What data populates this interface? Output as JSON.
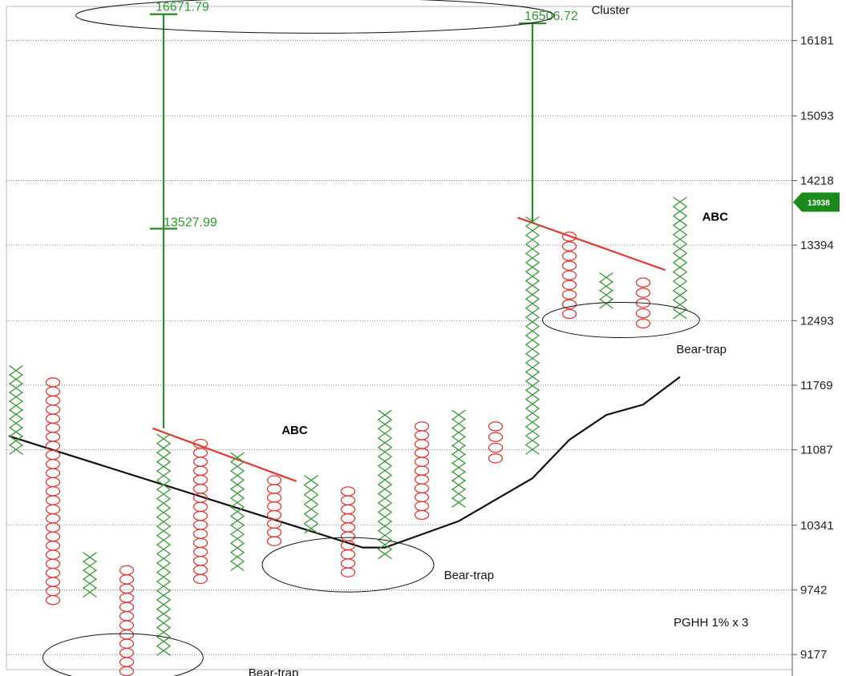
{
  "chart_data": {
    "type": "point-and-figure",
    "symbol_label": "PGHH 1% x 3",
    "y_ticks": [
      16181,
      15093,
      14218,
      13394,
      12493,
      11769,
      11087,
      10341,
      9742,
      9177
    ],
    "ylim": [
      9050,
      16700
    ],
    "scale": "log",
    "grid": "horizontal dotted",
    "current_price": {
      "label": "13938",
      "value": 13938,
      "color": "#1a8a1a"
    },
    "colors": {
      "x": "#3a9a3a",
      "o": "#e53935",
      "trend": "#111111",
      "target": "#2a8a2a",
      "abc": "#e53935"
    },
    "columns": [
      {
        "type": "X",
        "top": 11930,
        "bottom": 11090
      },
      {
        "type": "O",
        "top": 11800,
        "bottom": 9650
      },
      {
        "type": "X",
        "top": 10040,
        "bottom": 9720
      },
      {
        "type": "O",
        "top": 9920,
        "bottom": 8960
      },
      {
        "type": "X",
        "top": 11200,
        "bottom": 9210
      },
      {
        "type": "O",
        "top": 11150,
        "bottom": 9840
      },
      {
        "type": "X",
        "top": 11010,
        "bottom": 9960
      },
      {
        "type": "O",
        "top": 10780,
        "bottom": 10190
      },
      {
        "type": "X",
        "top": 10780,
        "bottom": 10310
      },
      {
        "type": "O",
        "top": 10670,
        "bottom": 9900
      },
      {
        "type": "X",
        "top": 11450,
        "bottom": 10070
      },
      {
        "type": "O",
        "top": 11330,
        "bottom": 10440
      },
      {
        "type": "X",
        "top": 11450,
        "bottom": 10560
      },
      {
        "type": "O",
        "top": 11330,
        "bottom": 11000
      },
      {
        "type": "X",
        "top": 13690,
        "bottom": 11090
      },
      {
        "type": "O",
        "top": 13500,
        "bottom": 12570
      },
      {
        "type": "X",
        "top": 13000,
        "bottom": 12690
      },
      {
        "type": "O",
        "top": 12940,
        "bottom": 12460
      },
      {
        "type": "X",
        "top": 13940,
        "bottom": 12570
      }
    ],
    "trend_line": [
      {
        "col": -0.2,
        "value": 11230
      },
      {
        "col": 9.4,
        "value": 10130
      },
      {
        "col": 10.0,
        "value": 10130
      },
      {
        "col": 12.0,
        "value": 10380
      },
      {
        "col": 14.0,
        "value": 10800
      },
      {
        "col": 15.0,
        "value": 11190
      },
      {
        "col": 16.0,
        "value": 11450
      },
      {
        "col": 17.0,
        "value": 11560
      },
      {
        "col": 18.0,
        "value": 11860
      }
    ],
    "abc_lines": [
      {
        "label": "ABC",
        "from": {
          "col": 3.7,
          "value": 11310
        },
        "to": {
          "col": 7.6,
          "value": 10770
        }
      },
      {
        "label": "ABC",
        "from": {
          "col": 13.6,
          "value": 13740
        },
        "to": {
          "col": 17.6,
          "value": 13090
        }
      }
    ],
    "price_targets": [
      {
        "col": 4,
        "from": 11310,
        "to": 16580,
        "label": "16671.79",
        "level": 16580,
        "mid_label": "13527.99",
        "mid_level": 13600
      },
      {
        "col": 14,
        "from": 13690,
        "to": 16440,
        "label": "16506.72",
        "level": 16440
      }
    ],
    "annotations": [
      {
        "text": "Cluster",
        "col": 15.6,
        "value": 16580
      },
      {
        "text": "Bear-trap",
        "col": 6.3,
        "value": 8990
      },
      {
        "text": "Bear-trap",
        "col": 11.6,
        "value": 9840
      },
      {
        "text": "Bear-trap",
        "col": 17.9,
        "value": 12120
      },
      {
        "text": "ABC",
        "col": 7.2,
        "value": 11250
      },
      {
        "text": "ABC",
        "col": 18.6,
        "value": 13700
      }
    ],
    "ellipses": [
      {
        "col": 8.1,
        "value": 16560,
        "rx": 298,
        "ry": 22
      },
      {
        "col": 2.9,
        "value": 9150,
        "rx": 100,
        "ry": 30
      },
      {
        "col": 9.0,
        "value": 9970,
        "rx": 107,
        "ry": 34
      },
      {
        "col": 16.4,
        "value": 12500,
        "rx": 98,
        "ry": 22
      }
    ]
  }
}
